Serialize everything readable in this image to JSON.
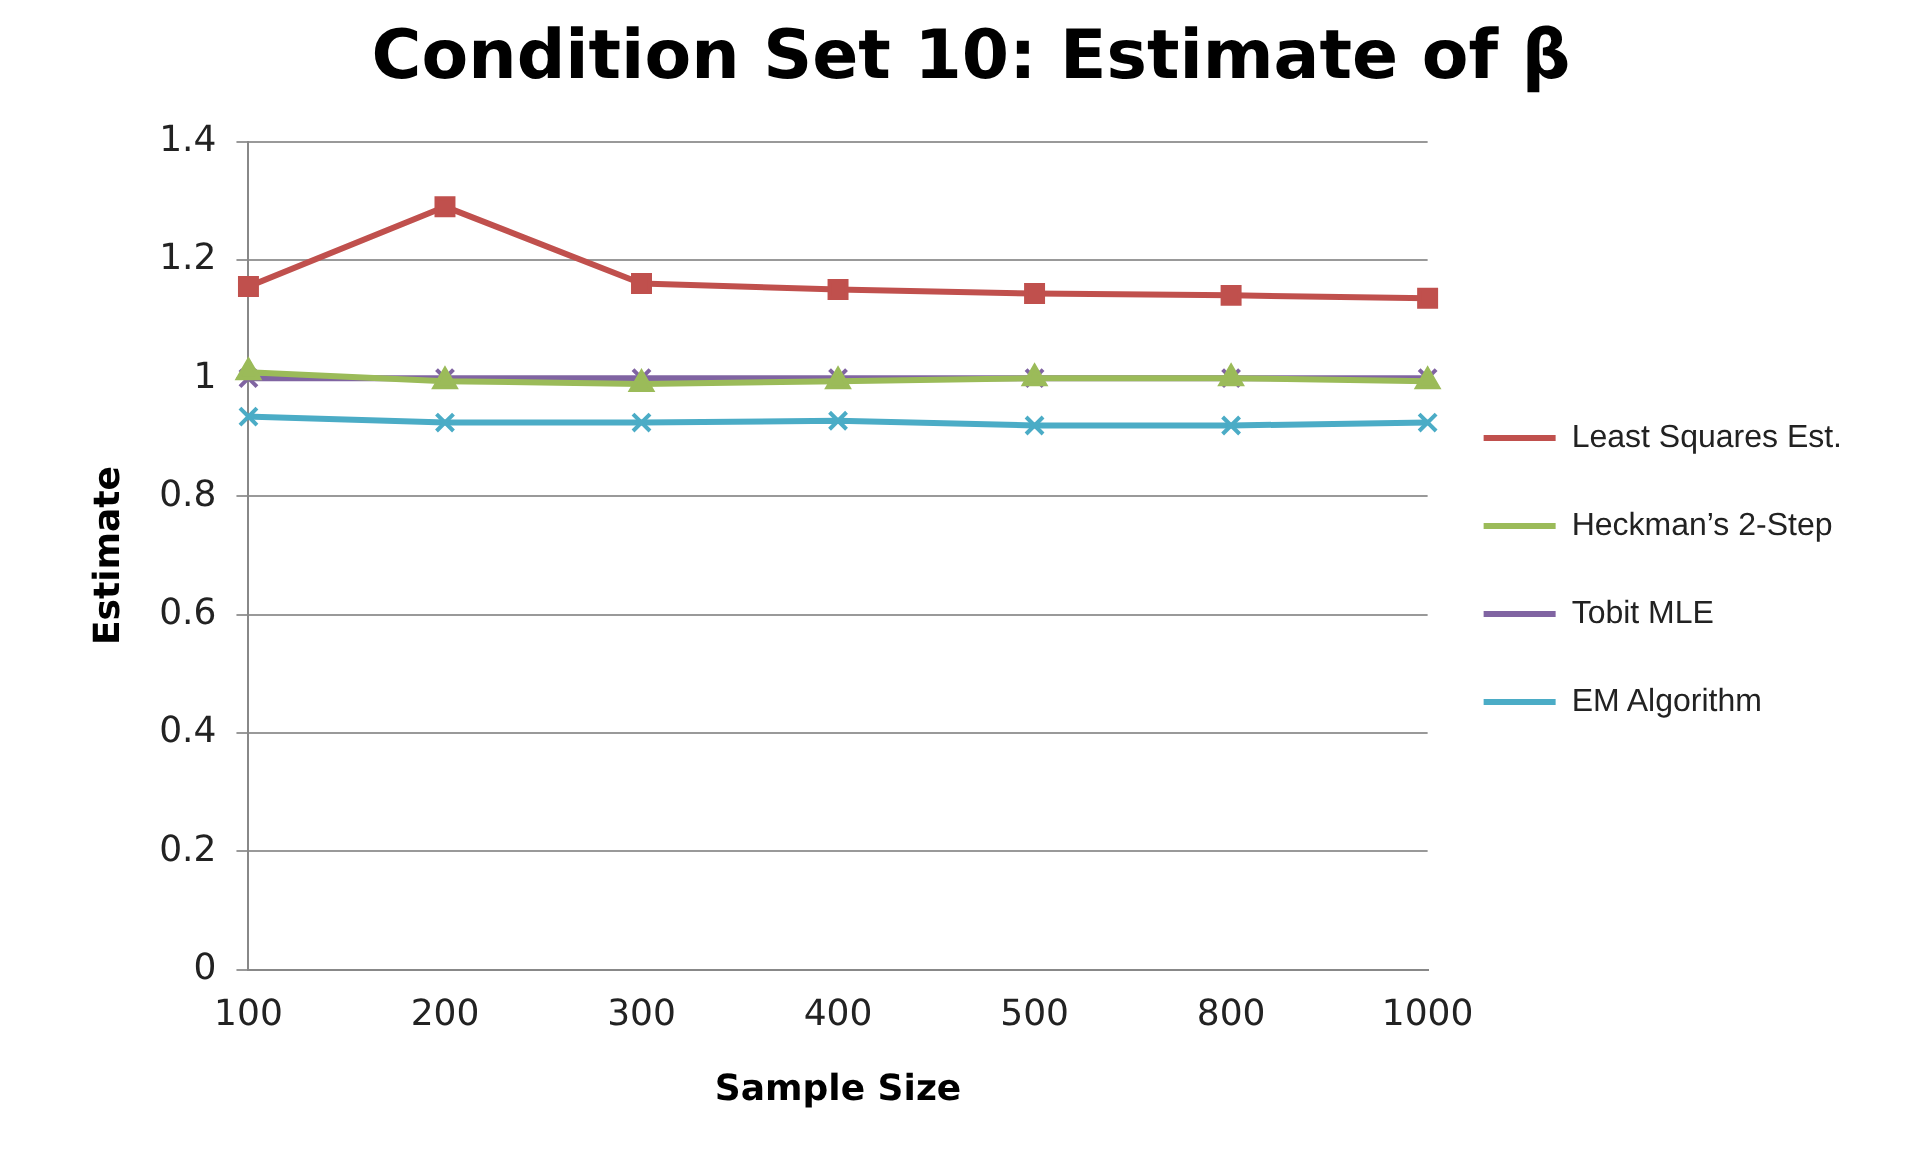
{
  "chart_data": {
    "type": "line",
    "title": "Condition Set 10: Estimate of β",
    "xlabel": "Sample Size",
    "ylabel": "Estimate",
    "categories": [
      "100",
      "200",
      "300",
      "400",
      "500",
      "800",
      "1000"
    ],
    "ylim": [
      0,
      1.4
    ],
    "yticks": [
      0,
      0.2,
      0.4,
      0.6,
      0.8,
      1,
      1.2,
      1.4
    ],
    "grid": "y",
    "legend": "right",
    "line_style": "solid",
    "series": [
      {
        "name": "Least Squares Est.",
        "color": "#c0504d",
        "marker": "square",
        "values": [
          1.155,
          1.29,
          1.16,
          1.15,
          1.143,
          1.14,
          1.135
        ]
      },
      {
        "name": "Heckman’s 2-Step",
        "color": "#9bbb59",
        "marker": "triangle",
        "values": [
          1.01,
          0.995,
          0.99,
          0.995,
          1.0,
          1.0,
          0.995
        ]
      },
      {
        "name": "Tobit MLE",
        "color": "#8064a2",
        "marker": "cross",
        "values": [
          1.0,
          1.0,
          1.0,
          1.0,
          1.0,
          1.0,
          1.0
        ]
      },
      {
        "name": "EM Algorithm",
        "color": "#4bacc6",
        "marker": "cross",
        "values": [
          0.935,
          0.925,
          0.925,
          0.928,
          0.92,
          0.92,
          0.925
        ]
      }
    ]
  }
}
